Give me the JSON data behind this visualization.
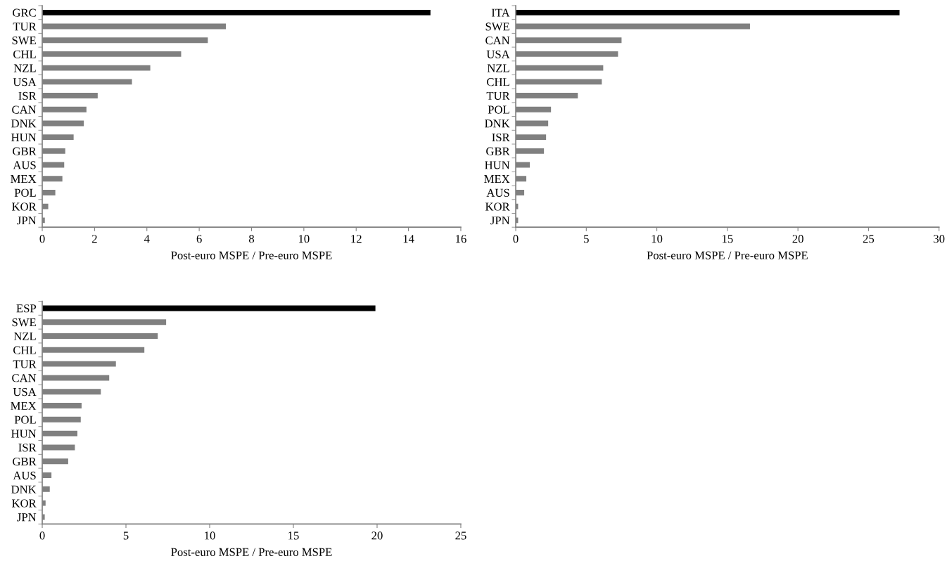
{
  "chart_data": [
    {
      "type": "bar",
      "orientation": "horizontal",
      "xlabel": "Post-euro MSPE / Pre-euro MSPE",
      "categories": [
        "GRC",
        "TUR",
        "SWE",
        "CHL",
        "NZL",
        "USA",
        "ISR",
        "CAN",
        "DNK",
        "HUN",
        "GBR",
        "AUS",
        "MEX",
        "POL",
        "KOR",
        "JPN"
      ],
      "values": [
        14.84,
        7.02,
        6.33,
        5.31,
        4.13,
        3.43,
        2.12,
        1.69,
        1.59,
        1.2,
        0.88,
        0.84,
        0.77,
        0.5,
        0.23,
        0.1
      ],
      "colors": [
        "#000000",
        "#808080",
        "#808080",
        "#808080",
        "#808080",
        "#808080",
        "#808080",
        "#808080",
        "#808080",
        "#808080",
        "#808080",
        "#808080",
        "#808080",
        "#808080",
        "#808080",
        "#808080"
      ],
      "xlim": [
        0,
        16
      ],
      "xticks": [
        0,
        2,
        4,
        6,
        8,
        10,
        12,
        14,
        16
      ],
      "grid": false,
      "legend": false
    },
    {
      "type": "bar",
      "orientation": "horizontal",
      "xlabel": "Post-euro MSPE / Pre-euro MSPE",
      "categories": [
        "ITA",
        "SWE",
        "CAN",
        "USA",
        "NZL",
        "CHL",
        "TUR",
        "POL",
        "DNK",
        "ISR",
        "GBR",
        "HUN",
        "MEX",
        "AUS",
        "KOR",
        "JPN"
      ],
      "values": [
        27.2,
        16.6,
        7.5,
        7.25,
        6.2,
        6.1,
        4.4,
        2.5,
        2.3,
        2.15,
        2.0,
        1.0,
        0.75,
        0.6,
        0.17,
        0.17
      ],
      "colors": [
        "#000000",
        "#808080",
        "#808080",
        "#808080",
        "#808080",
        "#808080",
        "#808080",
        "#808080",
        "#808080",
        "#808080",
        "#808080",
        "#808080",
        "#808080",
        "#808080",
        "#808080",
        "#808080"
      ],
      "xlim": [
        0,
        30
      ],
      "xticks": [
        0,
        5,
        10,
        15,
        20,
        25,
        30
      ],
      "grid": false,
      "legend": false
    },
    {
      "type": "bar",
      "orientation": "horizontal",
      "xlabel": "Post-euro MSPE / Pre-euro MSPE",
      "categories": [
        "ESP",
        "SWE",
        "NZL",
        "CHL",
        "TUR",
        "CAN",
        "USA",
        "MEX",
        "POL",
        "HUN",
        "ISR",
        "GBR",
        "AUS",
        "DNK",
        "KOR",
        "JPN"
      ],
      "values": [
        19.9,
        7.4,
        6.9,
        6.1,
        4.4,
        4.0,
        3.5,
        2.35,
        2.3,
        2.1,
        1.95,
        1.55,
        0.55,
        0.45,
        0.2,
        0.15
      ],
      "colors": [
        "#000000",
        "#808080",
        "#808080",
        "#808080",
        "#808080",
        "#808080",
        "#808080",
        "#808080",
        "#808080",
        "#808080",
        "#808080",
        "#808080",
        "#808080",
        "#808080",
        "#808080",
        "#808080"
      ],
      "xlim": [
        0,
        25
      ],
      "xticks": [
        0,
        5,
        10,
        15,
        20,
        25
      ],
      "grid": false,
      "legend": false
    }
  ]
}
